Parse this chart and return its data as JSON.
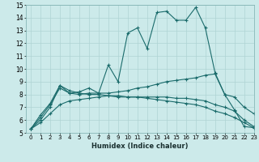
{
  "xlabel": "Humidex (Indice chaleur)",
  "xlim": [
    -0.5,
    23
  ],
  "ylim": [
    5,
    15
  ],
  "xticks": [
    0,
    1,
    2,
    3,
    4,
    5,
    6,
    7,
    8,
    9,
    10,
    11,
    12,
    13,
    14,
    15,
    16,
    17,
    18,
    19,
    20,
    21,
    22,
    23
  ],
  "yticks": [
    5,
    6,
    7,
    8,
    9,
    10,
    11,
    12,
    13,
    14,
    15
  ],
  "bg_color": "#cceaea",
  "line_color": "#1a6b6b",
  "grid_color": "#aed4d4",
  "series": [
    {
      "x": [
        0,
        1,
        2,
        3,
        4,
        5,
        6,
        7,
        8,
        9,
        10,
        11,
        12,
        13,
        14,
        15,
        16,
        17,
        18,
        19,
        20,
        21,
        22,
        23
      ],
      "y": [
        5.3,
        6.4,
        7.3,
        8.7,
        8.1,
        8.2,
        8.5,
        8.1,
        10.3,
        9.0,
        12.8,
        13.2,
        11.6,
        14.4,
        14.5,
        13.8,
        13.8,
        14.8,
        13.2,
        9.7,
        8.0,
        6.8,
        5.5,
        5.4
      ]
    },
    {
      "x": [
        0,
        1,
        2,
        3,
        4,
        5,
        6,
        7,
        8,
        9,
        10,
        11,
        12,
        13,
        14,
        15,
        16,
        17,
        18,
        19,
        20,
        21,
        22,
        23
      ],
      "y": [
        5.3,
        6.2,
        7.2,
        8.5,
        8.1,
        8.0,
        8.1,
        8.1,
        8.1,
        8.2,
        8.3,
        8.5,
        8.6,
        8.8,
        9.0,
        9.1,
        9.2,
        9.3,
        9.5,
        9.6,
        8.0,
        7.8,
        7.0,
        6.5
      ]
    },
    {
      "x": [
        0,
        1,
        2,
        3,
        4,
        5,
        6,
        7,
        8,
        9,
        10,
        11,
        12,
        13,
        14,
        15,
        16,
        17,
        18,
        19,
        20,
        21,
        22,
        23
      ],
      "y": [
        5.3,
        6.0,
        7.0,
        8.7,
        8.3,
        8.1,
        8.0,
        8.0,
        7.9,
        7.8,
        7.8,
        7.8,
        7.8,
        7.8,
        7.8,
        7.7,
        7.7,
        7.6,
        7.5,
        7.2,
        7.0,
        6.7,
        6.0,
        5.5
      ]
    },
    {
      "x": [
        0,
        1,
        2,
        3,
        4,
        5,
        6,
        7,
        8,
        9,
        10,
        11,
        12,
        13,
        14,
        15,
        16,
        17,
        18,
        19,
        20,
        21,
        22,
        23
      ],
      "y": [
        5.3,
        5.8,
        6.5,
        7.2,
        7.5,
        7.6,
        7.7,
        7.8,
        7.9,
        7.9,
        7.8,
        7.8,
        7.7,
        7.6,
        7.5,
        7.4,
        7.3,
        7.2,
        7.0,
        6.7,
        6.5,
        6.2,
        5.8,
        5.4
      ]
    }
  ]
}
